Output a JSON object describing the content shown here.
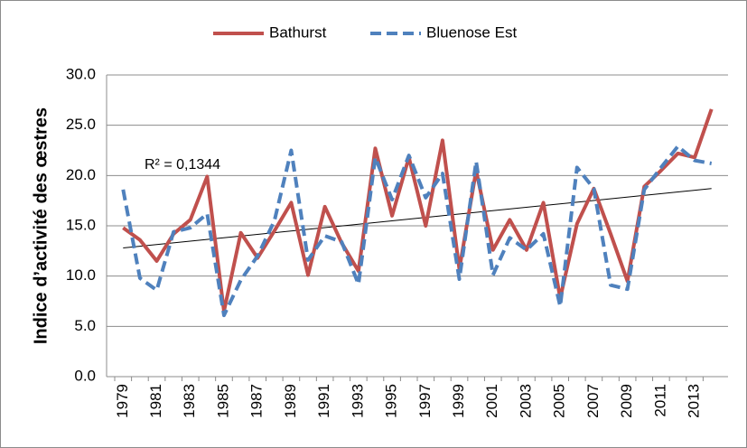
{
  "chart_data": {
    "type": "line",
    "y_label": "Indice d’activité des œstres",
    "categories": [
      "1979",
      null,
      "1981",
      null,
      "1983",
      null,
      "1985",
      null,
      "1987",
      null,
      "1989",
      null,
      "1991",
      null,
      "1993",
      null,
      "1995",
      null,
      "1997",
      null,
      "1999",
      null,
      "2001",
      null,
      "2003",
      null,
      "2005",
      null,
      "2007",
      null,
      "2009",
      null,
      "2011",
      null,
      "2013",
      null
    ],
    "series": [
      {
        "name": "Bathurst",
        "color": "#c0504d",
        "dashed": false,
        "values": [
          14.8,
          13.6,
          11.5,
          14.2,
          15.6,
          19.9,
          6.5,
          14.3,
          11.8,
          14.5,
          17.3,
          10.1,
          16.9,
          13.3,
          10.5,
          22.7,
          16.0,
          21.8,
          15.0,
          23.5,
          10.7,
          20.5,
          12.6,
          15.6,
          12.6,
          17.3,
          7.8,
          15.2,
          18.7,
          14.2,
          9.5,
          18.9,
          20.5,
          22.2,
          21.8,
          26.6
        ]
      },
      {
        "name": "Bluenose Est",
        "color": "#4f81bd",
        "dashed": true,
        "values": [
          18.6,
          9.8,
          8.6,
          14.4,
          14.8,
          16.2,
          6.1,
          9.6,
          12.0,
          15.5,
          22.5,
          11.6,
          14.0,
          13.4,
          9.2,
          21.8,
          17.6,
          22.0,
          17.8,
          20.2,
          9.7,
          21.4,
          10.1,
          13.8,
          12.6,
          14.2,
          7.0,
          20.8,
          18.7,
          9.1,
          8.7,
          18.6,
          20.8,
          22.9,
          21.5,
          21.2
        ]
      }
    ],
    "trendline": {
      "start": 12.8,
      "end": 18.7,
      "annotation": "R² = 0,1344"
    },
    "ylim": [
      0,
      30
    ],
    "yticks": [
      {
        "value": 0,
        "label": "0.0"
      },
      {
        "value": 5,
        "label": "5.0"
      },
      {
        "value": 10,
        "label": "10.0"
      },
      {
        "value": 15,
        "label": "15.0"
      },
      {
        "value": 20,
        "label": "20.0"
      },
      {
        "value": 25,
        "label": "25.0"
      },
      {
        "value": 30,
        "label": "30.0"
      }
    ],
    "grid": true,
    "legend": "top"
  }
}
